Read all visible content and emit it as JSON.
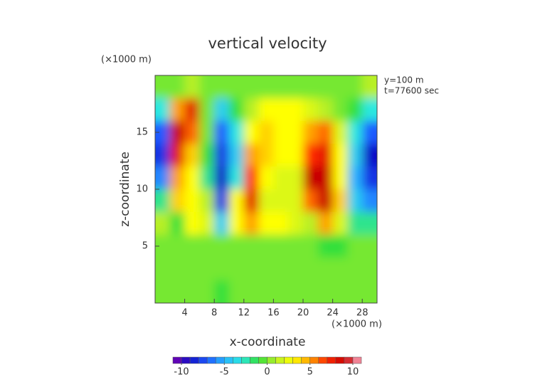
{
  "chart_data": {
    "type": "contour",
    "title": "vertical velocity",
    "xlabel": "x-coordinate",
    "ylabel": "z-coordinate",
    "xunit": "(×1000 m)",
    "yunit": "(×1000 m)",
    "annotations": [
      "y=100 m",
      "t=77600 sec"
    ],
    "xlim": [
      0,
      30
    ],
    "ylim": [
      0,
      20
    ],
    "xticks": [
      4,
      8,
      12,
      16,
      20,
      24,
      28
    ],
    "yticks": [
      5,
      10,
      15
    ],
    "x": [
      1,
      3,
      5,
      7,
      9,
      11,
      13,
      15,
      17,
      19,
      21,
      23,
      25,
      27,
      29
    ],
    "y": [
      19,
      17,
      15,
      13,
      11,
      9,
      7,
      5,
      3,
      1
    ],
    "z": [
      [
        0,
        0,
        1,
        0,
        0,
        0,
        0,
        0,
        0,
        0,
        0,
        0,
        0,
        0,
        1
      ],
      [
        -3,
        5,
        8,
        0,
        -4,
        -1,
        1,
        3,
        3,
        3,
        2,
        1,
        0,
        -1,
        -3
      ],
      [
        -7,
        9,
        6,
        0,
        -7,
        -3,
        3,
        4,
        3,
        3,
        5,
        6,
        2,
        -3,
        -7
      ],
      [
        -8,
        8,
        4,
        -1,
        -8,
        -4,
        5,
        4,
        3,
        3,
        7,
        8,
        3,
        -4,
        -9
      ],
      [
        -6,
        5,
        3,
        -2,
        -9,
        -3,
        7,
        3,
        2,
        2,
        9,
        9,
        3,
        -5,
        -8
      ],
      [
        -2,
        4,
        3,
        1,
        -8,
        3,
        8,
        2,
        2,
        2,
        6,
        9,
        4,
        -4,
        -6
      ],
      [
        1,
        -1,
        3,
        2,
        -4,
        3,
        5,
        3,
        3,
        2,
        1,
        5,
        2,
        -2,
        -2
      ],
      [
        0,
        0,
        0,
        0,
        0,
        0,
        0,
        0,
        0,
        0,
        0,
        -1,
        -1,
        0,
        0
      ],
      [
        0,
        0,
        0,
        0,
        0,
        0,
        0,
        0,
        0,
        0,
        0,
        0,
        0,
        0,
        0
      ],
      [
        0,
        0,
        0,
        0,
        -1,
        0,
        0,
        0,
        0,
        0,
        0,
        0,
        0,
        0,
        0
      ]
    ],
    "clim": [
      -11,
      11
    ],
    "cticks": [
      -10,
      -5,
      0,
      5,
      10
    ],
    "colormap": [
      "#7a00b0",
      "#1010c8",
      "#1e5aff",
      "#27b4ff",
      "#2ae8e0",
      "#33e03a",
      "#b8f028",
      "#ffff00",
      "#ffa000",
      "#ff2a00",
      "#c80000",
      "#ffb0c8"
    ]
  }
}
